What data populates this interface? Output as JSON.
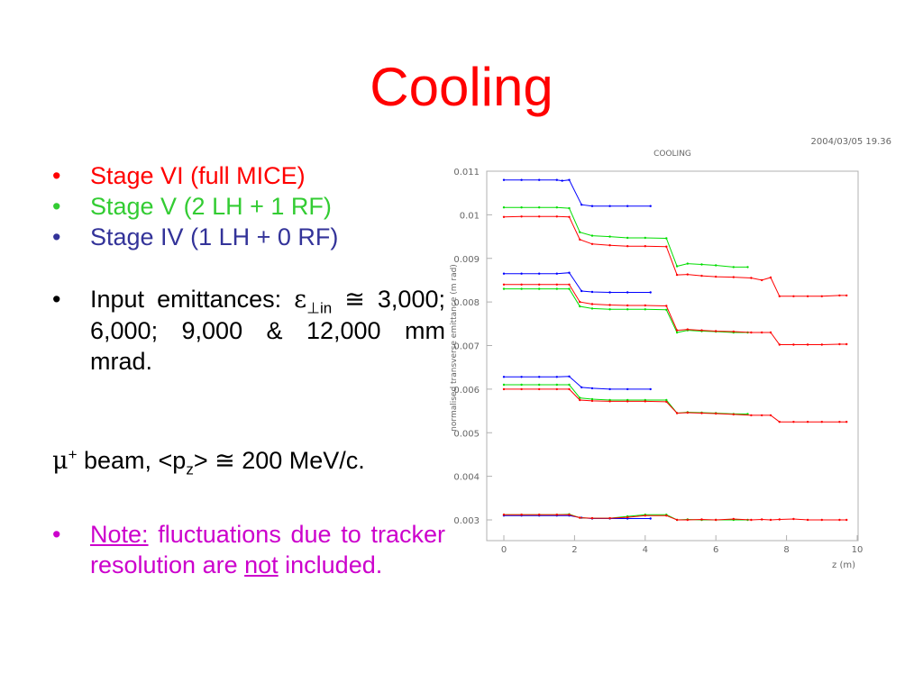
{
  "slide": {
    "title": "Cooling",
    "bullets": [
      {
        "text": "Stage VI (full MICE)",
        "color": "#ff0000"
      },
      {
        "text": "Stage V (2 LH + 1 RF)",
        "color": "#33cc33"
      },
      {
        "text": "Stage IV (1 LH + 0 RF)",
        "color": "#333399"
      }
    ],
    "bullet_char": "•",
    "input": {
      "prefix": "Input emittances: ",
      "epsilon": "ε",
      "perp_sub": "⊥in",
      "approx": " ≅ ",
      "values": "3,000; 6,000; 9,000 & 12,000 mm mrad."
    },
    "beam": {
      "mu": "μ",
      "plus": "+",
      "text_a": " beam, <p",
      "z_sub": "z",
      "text_b": "> ≅ 200 MeV/c."
    },
    "note": {
      "label": "Note:",
      "text_a": " fluctuations due to tracker resolution are ",
      "not": "not",
      "text_b": " included."
    }
  },
  "chart_data": {
    "type": "line",
    "header_date": "2004/03/05   19.36",
    "title": "COOLING",
    "xlabel": "z (m)",
    "ylabel": "normalised transverse emittance (m rad)",
    "xlim": [
      0,
      10
    ],
    "ylim": [
      0.00275,
      0.011
    ],
    "x_ticks": [
      0,
      2,
      4,
      6,
      8,
      10
    ],
    "y_ticks": [
      0.003,
      0.004,
      0.005,
      0.006,
      0.007,
      0.008,
      0.009,
      0.01,
      0.011
    ],
    "y_tick_labels": [
      "0.003",
      "0.004",
      "0.005",
      "0.006",
      "0.007",
      "0.008",
      "0.009",
      "0.01",
      "0.011"
    ],
    "series_colors": {
      "stage_iv": "#0000ff",
      "stage_v": "#00dd00",
      "stage_vi": "#ff0000"
    },
    "series": [
      {
        "stage": "stage_iv",
        "x": [
          0,
          0.5,
          1.0,
          1.5,
          1.65,
          1.85,
          2.2,
          2.5,
          3.0,
          3.5,
          4.15
        ],
        "values": [
          0.0108,
          0.0108,
          0.0108,
          0.0108,
          0.01078,
          0.0108,
          0.01023,
          0.0102,
          0.0102,
          0.0102,
          0.0102
        ]
      },
      {
        "stage": "stage_iv",
        "x": [
          0,
          0.5,
          1.0,
          1.5,
          1.85,
          2.2,
          2.5,
          3.0,
          3.5,
          4.15
        ],
        "values": [
          0.00865,
          0.00865,
          0.00865,
          0.00865,
          0.00867,
          0.00825,
          0.00823,
          0.00822,
          0.00822,
          0.00822
        ]
      },
      {
        "stage": "stage_iv",
        "x": [
          0,
          0.5,
          1.0,
          1.5,
          1.85,
          2.2,
          2.5,
          3.0,
          3.5,
          4.15
        ],
        "values": [
          0.00628,
          0.00628,
          0.00628,
          0.00628,
          0.00629,
          0.00604,
          0.00602,
          0.006,
          0.006,
          0.006
        ]
      },
      {
        "stage": "stage_iv",
        "x": [
          0,
          0.5,
          1.0,
          1.5,
          1.85,
          2.2,
          2.5,
          3.0,
          3.5,
          4.15
        ],
        "values": [
          0.0031,
          0.0031,
          0.0031,
          0.0031,
          0.0031,
          0.00305,
          0.00303,
          0.00303,
          0.00303,
          0.00303
        ]
      },
      {
        "stage": "stage_v",
        "x": [
          0,
          0.5,
          1.0,
          1.5,
          1.85,
          2.15,
          2.5,
          3.0,
          3.5,
          4.0,
          4.6,
          4.9,
          5.2,
          5.6,
          6.0,
          6.5,
          6.9
        ],
        "values": [
          0.01017,
          0.01017,
          0.01017,
          0.01017,
          0.01015,
          0.0096,
          0.00952,
          0.0095,
          0.00947,
          0.00947,
          0.00946,
          0.00882,
          0.00888,
          0.00886,
          0.00884,
          0.0088,
          0.0088
        ]
      },
      {
        "stage": "stage_v",
        "x": [
          0,
          0.5,
          1.0,
          1.5,
          1.85,
          2.15,
          2.5,
          3.0,
          3.5,
          4.0,
          4.6,
          4.9,
          5.2,
          5.6,
          6.0,
          6.5,
          6.9
        ],
        "values": [
          0.0083,
          0.0083,
          0.0083,
          0.0083,
          0.0083,
          0.0079,
          0.00785,
          0.00783,
          0.00783,
          0.00783,
          0.00782,
          0.0073,
          0.00735,
          0.00733,
          0.00732,
          0.0073,
          0.0073
        ]
      },
      {
        "stage": "stage_v",
        "x": [
          0,
          0.5,
          1.0,
          1.5,
          1.85,
          2.15,
          2.5,
          3.0,
          3.5,
          4.0,
          4.6,
          4.9,
          5.2,
          5.6,
          6.0,
          6.5,
          6.9
        ],
        "values": [
          0.0061,
          0.0061,
          0.0061,
          0.0061,
          0.0061,
          0.0058,
          0.00577,
          0.00575,
          0.00575,
          0.00575,
          0.00575,
          0.00545,
          0.00547,
          0.00546,
          0.00545,
          0.00543,
          0.00543
        ]
      },
      {
        "stage": "stage_v",
        "x": [
          0,
          0.5,
          1.0,
          1.5,
          1.85,
          2.15,
          2.5,
          3.0,
          3.5,
          4.0,
          4.6,
          4.9,
          5.2,
          5.6,
          6.0,
          6.5,
          6.9
        ],
        "values": [
          0.00312,
          0.00312,
          0.00312,
          0.00312,
          0.00313,
          0.00305,
          0.00304,
          0.00304,
          0.00308,
          0.00312,
          0.00312,
          0.003,
          0.00301,
          0.003,
          0.003,
          0.003,
          0.003
        ]
      },
      {
        "stage": "stage_vi",
        "x": [
          0,
          0.5,
          1.0,
          1.5,
          1.85,
          2.15,
          2.5,
          3.0,
          3.5,
          4.0,
          4.6,
          4.9,
          5.2,
          5.6,
          6.0,
          6.5,
          7.0,
          7.3,
          7.55,
          7.8,
          8.2,
          8.6,
          9.0,
          9.5,
          9.7
        ],
        "values": [
          0.00995,
          0.00996,
          0.00996,
          0.00996,
          0.00995,
          0.00943,
          0.00933,
          0.0093,
          0.00928,
          0.00928,
          0.00927,
          0.00862,
          0.00863,
          0.0086,
          0.00858,
          0.00857,
          0.00855,
          0.0085,
          0.00856,
          0.00813,
          0.00813,
          0.00813,
          0.00813,
          0.00815,
          0.00815
        ]
      },
      {
        "stage": "stage_vi",
        "x": [
          0,
          0.5,
          1.0,
          1.5,
          1.85,
          2.15,
          2.5,
          3.0,
          3.5,
          4.0,
          4.6,
          4.9,
          5.2,
          5.6,
          6.0,
          6.5,
          7.0,
          7.3,
          7.55,
          7.8,
          8.2,
          8.6,
          9.0,
          9.5,
          9.7
        ],
        "values": [
          0.0084,
          0.0084,
          0.0084,
          0.0084,
          0.0084,
          0.008,
          0.00795,
          0.00793,
          0.00792,
          0.00792,
          0.00791,
          0.00735,
          0.00737,
          0.00735,
          0.00733,
          0.00732,
          0.0073,
          0.0073,
          0.0073,
          0.00702,
          0.00702,
          0.00702,
          0.00702,
          0.00703,
          0.00703
        ]
      },
      {
        "stage": "stage_vi",
        "x": [
          0,
          0.5,
          1.0,
          1.5,
          1.85,
          2.15,
          2.5,
          3.0,
          3.5,
          4.0,
          4.6,
          4.9,
          5.2,
          5.6,
          6.0,
          6.5,
          7.0,
          7.3,
          7.55,
          7.8,
          8.2,
          8.6,
          9.0,
          9.5,
          9.7
        ],
        "values": [
          0.006,
          0.006,
          0.006,
          0.006,
          0.006,
          0.00575,
          0.00573,
          0.00572,
          0.00572,
          0.00572,
          0.00571,
          0.00545,
          0.00546,
          0.00545,
          0.00544,
          0.00542,
          0.0054,
          0.0054,
          0.0054,
          0.00525,
          0.00525,
          0.00525,
          0.00525,
          0.00525,
          0.00525
        ]
      },
      {
        "stage": "stage_vi",
        "x": [
          0,
          0.5,
          1.0,
          1.5,
          1.85,
          2.15,
          2.5,
          3.0,
          3.5,
          4.0,
          4.6,
          4.9,
          5.2,
          5.6,
          6.0,
          6.5,
          7.0,
          7.3,
          7.55,
          7.8,
          8.2,
          8.6,
          9.0,
          9.5,
          9.7
        ],
        "values": [
          0.00312,
          0.00312,
          0.00312,
          0.00312,
          0.00312,
          0.00305,
          0.00304,
          0.00304,
          0.00306,
          0.0031,
          0.0031,
          0.003,
          0.003,
          0.00301,
          0.003,
          0.00302,
          0.003,
          0.00301,
          0.003,
          0.00301,
          0.00302,
          0.003,
          0.003,
          0.003,
          0.003
        ]
      }
    ]
  }
}
